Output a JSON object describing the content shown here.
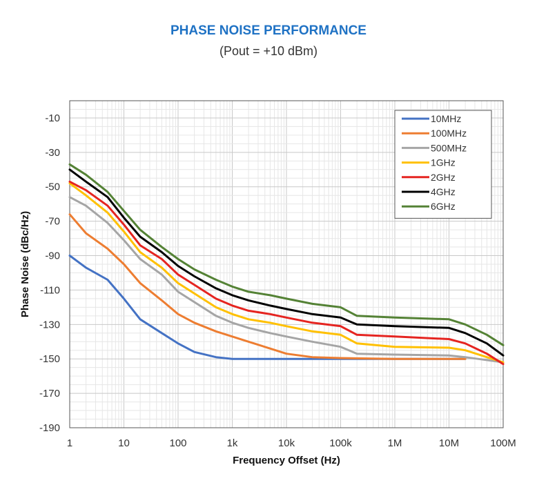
{
  "chart_data": {
    "type": "line",
    "title": "PHASE NOISE PERFORMANCE",
    "subtitle": "(Pout = +10 dBm)",
    "xlabel": "Frequency Offset (Hz)",
    "ylabel": "Phase Noise (dBc/Hz)",
    "xscale": "log",
    "xlim": [
      1,
      100000000
    ],
    "ylim": [
      -190,
      0
    ],
    "xticks": [
      {
        "value": 1,
        "label": "1"
      },
      {
        "value": 10,
        "label": "10"
      },
      {
        "value": 100,
        "label": "100"
      },
      {
        "value": 1000,
        "label": "1k"
      },
      {
        "value": 10000,
        "label": "10k"
      },
      {
        "value": 100000,
        "label": "100k"
      },
      {
        "value": 1000000,
        "label": "1M"
      },
      {
        "value": 10000000,
        "label": "10M"
      },
      {
        "value": 100000000,
        "label": "100M"
      }
    ],
    "yticks": [
      -10,
      -30,
      -50,
      -70,
      -90,
      -110,
      -130,
      -150,
      -170,
      -190
    ],
    "grid": true,
    "legend_position": "top-right",
    "series": [
      {
        "name": "10MHz",
        "color": "#4472c4",
        "x": [
          1,
          2,
          5,
          10,
          20,
          50,
          100,
          200,
          500,
          1000,
          10000,
          100000,
          1000000,
          10000000,
          20000000
        ],
        "y": [
          -90,
          -97,
          -104,
          -115,
          -127,
          -135,
          -141,
          -146,
          -149,
          -150,
          -150,
          -150,
          -150,
          -150,
          -150
        ]
      },
      {
        "name": "100MHz",
        "color": "#ed7d31",
        "x": [
          1,
          2,
          5,
          10,
          20,
          50,
          100,
          200,
          500,
          1000,
          2000,
          5000,
          10000,
          30000,
          100000,
          1000000,
          10000000,
          20000000
        ],
        "y": [
          -66,
          -77,
          -86,
          -95,
          -106,
          -116,
          -124,
          -129,
          -134,
          -137,
          -140,
          -144,
          -147,
          -149,
          -149.5,
          -150,
          -150,
          -150
        ]
      },
      {
        "name": "500MHz",
        "color": "#a5a5a5",
        "x": [
          1,
          2,
          5,
          10,
          20,
          50,
          100,
          200,
          500,
          1000,
          2000,
          5000,
          10000,
          30000,
          100000,
          200000,
          1000000,
          10000000,
          20000000,
          100000000
        ],
        "y": [
          -56,
          -61,
          -71,
          -81,
          -92,
          -101,
          -111,
          -117,
          -125,
          -129,
          -132,
          -135,
          -137,
          -140,
          -143,
          -147,
          -147.5,
          -148,
          -149,
          -152
        ]
      },
      {
        "name": "1GHz",
        "color": "#ffc000",
        "x": [
          1,
          2,
          5,
          10,
          20,
          50,
          100,
          200,
          500,
          1000,
          2000,
          5000,
          10000,
          30000,
          100000,
          200000,
          1000000,
          10000000,
          20000000,
          50000000,
          100000000
        ],
        "y": [
          -48,
          -55,
          -65,
          -76,
          -88,
          -97,
          -106,
          -112,
          -120,
          -124,
          -127,
          -129,
          -131,
          -134,
          -136,
          -141,
          -143,
          -143.5,
          -145,
          -149,
          -152
        ]
      },
      {
        "name": "2GHz",
        "color": "#e52420",
        "x": [
          1,
          2,
          5,
          10,
          20,
          50,
          100,
          200,
          500,
          1000,
          2000,
          5000,
          10000,
          30000,
          100000,
          200000,
          1000000,
          10000000,
          20000000,
          50000000,
          100000000
        ],
        "y": [
          -47,
          -52,
          -61,
          -72,
          -84,
          -92,
          -101,
          -107,
          -115,
          -119,
          -122,
          -124,
          -126,
          -129,
          -131,
          -136,
          -137,
          -138.5,
          -141,
          -147,
          -153
        ]
      },
      {
        "name": "4GHz",
        "color": "#000000",
        "x": [
          1,
          2,
          5,
          10,
          20,
          50,
          100,
          200,
          500,
          1000,
          2000,
          5000,
          10000,
          30000,
          100000,
          200000,
          1000000,
          10000000,
          20000000,
          50000000,
          100000000
        ],
        "y": [
          -40,
          -47,
          -56,
          -68,
          -79,
          -88,
          -96,
          -102,
          -109,
          -113,
          -116,
          -119,
          -121,
          -124,
          -126,
          -130,
          -131,
          -132,
          -135,
          -141,
          -148
        ]
      },
      {
        "name": "6GHz",
        "color": "#548235",
        "x": [
          1,
          2,
          5,
          10,
          20,
          50,
          100,
          200,
          500,
          1000,
          2000,
          5000,
          10000,
          30000,
          100000,
          200000,
          1000000,
          10000000,
          20000000,
          50000000,
          100000000
        ],
        "y": [
          -37,
          -43,
          -53,
          -64,
          -75,
          -85,
          -92,
          -98,
          -104,
          -108,
          -111,
          -113,
          -115,
          -118,
          -120,
          -125,
          -126,
          -127,
          -130,
          -136,
          -142
        ]
      }
    ]
  }
}
